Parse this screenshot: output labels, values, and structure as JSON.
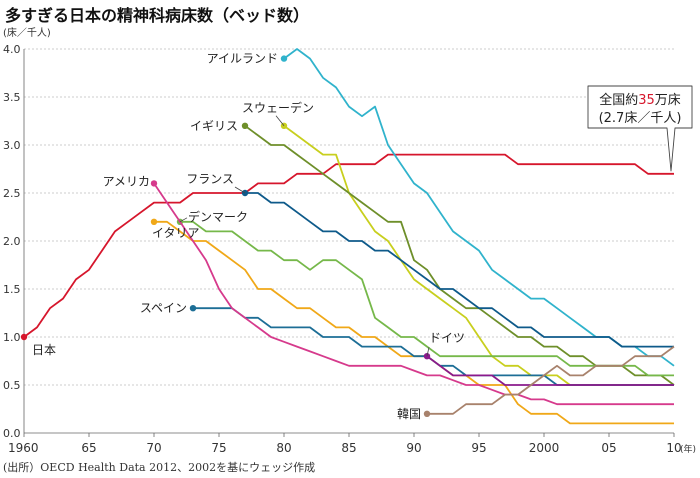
{
  "title": "多すぎる日本の精神科病床数（ベッド数）",
  "y_unit_label": "(床／千人)",
  "x_unit_label": "(年)",
  "source": "(出所）OECD Health Data 2012、2002を基にウェッジ作成",
  "callout": {
    "line1_prefix": "全国約",
    "line1_number": "35",
    "line1_suffix": "万床",
    "line2": "(2.7床／千人)",
    "number_color": "#d6162c"
  },
  "chart_data": {
    "type": "line",
    "title": "多すぎる日本の精神科病床数（ベッド数）",
    "xlabel": "",
    "ylabel": "(床／千人)",
    "xlim": [
      1960,
      2010
    ],
    "ylim": [
      0,
      4
    ],
    "x_ticks": [
      1960,
      1965,
      1970,
      1975,
      1980,
      1985,
      1990,
      1995,
      2000,
      2005,
      2010
    ],
    "x_tick_labels": [
      "1960",
      "65",
      "70",
      "75",
      "80",
      "85",
      "90",
      "95",
      "2000",
      "05",
      "10"
    ],
    "y_ticks": [
      0,
      0.5,
      1,
      1.5,
      2,
      2.5,
      3,
      3.5,
      4
    ],
    "y_tick_labels": [
      "0.0",
      "0.5",
      "1.0",
      "1.5",
      "2.0",
      "2.5",
      "3.0",
      "3.5",
      "4.0"
    ],
    "grid": "horizontal",
    "series": [
      {
        "name": "日本",
        "color": "#d6162c",
        "x": [
          1960,
          1961,
          1962,
          1963,
          1964,
          1965,
          1966,
          1967,
          1968,
          1969,
          1970,
          1971,
          1972,
          1973,
          1974,
          1975,
          1976,
          1977,
          1978,
          1979,
          1980,
          1981,
          1982,
          1983,
          1984,
          1985,
          1986,
          1987,
          1988,
          1989,
          1990,
          1991,
          1992,
          1993,
          1994,
          1995,
          1996,
          1997,
          1998,
          1999,
          2000,
          2001,
          2002,
          2003,
          2004,
          2005,
          2006,
          2007,
          2008,
          2009,
          2010
        ],
        "y": [
          1.0,
          1.1,
          1.3,
          1.4,
          1.6,
          1.7,
          1.9,
          2.1,
          2.2,
          2.3,
          2.4,
          2.4,
          2.4,
          2.5,
          2.5,
          2.5,
          2.5,
          2.5,
          2.6,
          2.6,
          2.6,
          2.7,
          2.7,
          2.7,
          2.8,
          2.8,
          2.8,
          2.8,
          2.9,
          2.9,
          2.9,
          2.9,
          2.9,
          2.9,
          2.9,
          2.9,
          2.9,
          2.9,
          2.8,
          2.8,
          2.8,
          2.8,
          2.8,
          2.8,
          2.8,
          2.8,
          2.8,
          2.8,
          2.7,
          2.7,
          2.7
        ]
      },
      {
        "name": "アイルランド",
        "color": "#30b3cc",
        "x": [
          1980,
          1981,
          1982,
          1983,
          1984,
          1985,
          1986,
          1987,
          1988,
          1989,
          1990,
          1991,
          1992,
          1993,
          1994,
          1995,
          1996,
          1997,
          1998,
          1999,
          2000,
          2001,
          2002,
          2003,
          2004,
          2005,
          2006,
          2007,
          2008,
          2009,
          2010
        ],
        "y": [
          3.9,
          4.0,
          3.9,
          3.7,
          3.6,
          3.4,
          3.3,
          3.4,
          3.0,
          2.8,
          2.6,
          2.5,
          2.3,
          2.1,
          2.0,
          1.9,
          1.7,
          1.6,
          1.5,
          1.4,
          1.4,
          1.3,
          1.2,
          1.1,
          1.0,
          1.0,
          0.9,
          0.9,
          0.8,
          0.8,
          0.7
        ]
      },
      {
        "name": "スウェーデン",
        "color": "#c8cf1e",
        "x": [
          1980,
          1981,
          1982,
          1983,
          1984,
          1985,
          1986,
          1987,
          1988,
          1989,
          1990,
          1991,
          1992,
          1993,
          1994,
          1995,
          1996,
          1997,
          1998,
          1999,
          2000,
          2001,
          2002,
          2003,
          2004,
          2005,
          2006,
          2007,
          2008,
          2009,
          2010
        ],
        "y": [
          3.2,
          3.1,
          3.0,
          2.9,
          2.9,
          2.5,
          2.3,
          2.1,
          2.0,
          1.8,
          1.6,
          1.5,
          1.4,
          1.3,
          1.2,
          1.0,
          0.8,
          0.7,
          0.7,
          0.6,
          0.6,
          0.6,
          0.5,
          0.5,
          0.5,
          0.5,
          0.5,
          0.5,
          0.5,
          0.5,
          0.5
        ]
      },
      {
        "name": "イギリス",
        "color": "#6e8f2a",
        "x": [
          1977,
          1978,
          1979,
          1980,
          1981,
          1982,
          1983,
          1984,
          1985,
          1986,
          1987,
          1988,
          1989,
          1990,
          1991,
          1992,
          1993,
          1994,
          1995,
          1996,
          1997,
          1998,
          1999,
          2000,
          2001,
          2002,
          2003,
          2004,
          2005,
          2006,
          2007,
          2008,
          2009,
          2010
        ],
        "y": [
          3.2,
          3.1,
          3.0,
          3.0,
          2.9,
          2.8,
          2.7,
          2.6,
          2.5,
          2.4,
          2.3,
          2.2,
          2.2,
          1.8,
          1.7,
          1.5,
          1.4,
          1.3,
          1.3,
          1.2,
          1.1,
          1.0,
          1.0,
          0.9,
          0.9,
          0.8,
          0.8,
          0.7,
          0.7,
          0.7,
          0.6,
          0.6,
          0.6,
          0.5
        ]
      },
      {
        "name": "フランス",
        "color": "#0e5a8a",
        "x": [
          1977,
          1978,
          1979,
          1980,
          1981,
          1982,
          1983,
          1984,
          1985,
          1986,
          1987,
          1988,
          1989,
          1990,
          1991,
          1992,
          1993,
          1994,
          1995,
          1996,
          1997,
          1998,
          1999,
          2000,
          2001,
          2002,
          2003,
          2004,
          2005,
          2006,
          2007,
          2008,
          2009,
          2010
        ],
        "y": [
          2.5,
          2.5,
          2.4,
          2.4,
          2.3,
          2.2,
          2.1,
          2.1,
          2.0,
          2.0,
          1.9,
          1.9,
          1.8,
          1.7,
          1.6,
          1.5,
          1.5,
          1.4,
          1.3,
          1.3,
          1.2,
          1.1,
          1.1,
          1.0,
          1.0,
          1.0,
          1.0,
          1.0,
          1.0,
          0.9,
          0.9,
          0.9,
          0.9,
          0.9
        ]
      },
      {
        "name": "デンマーク",
        "color": "#76b84a",
        "x": [
          1972,
          1973,
          1974,
          1975,
          1976,
          1977,
          1978,
          1979,
          1980,
          1981,
          1982,
          1983,
          1984,
          1985,
          1986,
          1987,
          1988,
          1989,
          1990,
          1991,
          1992,
          1993,
          1994,
          1995,
          1996,
          1997,
          1998,
          1999,
          2000,
          2001,
          2002,
          2003,
          2004,
          2005,
          2006,
          2007,
          2008,
          2009,
          2010
        ],
        "y": [
          2.2,
          2.2,
          2.1,
          2.1,
          2.1,
          2.0,
          1.9,
          1.9,
          1.8,
          1.8,
          1.7,
          1.8,
          1.8,
          1.7,
          1.6,
          1.2,
          1.1,
          1.0,
          1.0,
          0.9,
          0.8,
          0.8,
          0.8,
          0.8,
          0.8,
          0.8,
          0.8,
          0.8,
          0.8,
          0.8,
          0.7,
          0.7,
          0.7,
          0.7,
          0.7,
          0.7,
          0.6,
          0.6,
          0.6
        ]
      },
      {
        "name": "イタリア",
        "color": "#f0a818",
        "x": [
          1970,
          1971,
          1972,
          1973,
          1974,
          1975,
          1976,
          1977,
          1978,
          1979,
          1980,
          1981,
          1982,
          1983,
          1984,
          1985,
          1986,
          1987,
          1988,
          1989,
          1990,
          1991,
          1992,
          1993,
          1994,
          1995,
          1996,
          1997,
          1998,
          1999,
          2000,
          2001,
          2002,
          2003,
          2004,
          2005,
          2006,
          2007,
          2008,
          2009,
          2010
        ],
        "y": [
          2.2,
          2.2,
          2.1,
          2.0,
          2.0,
          1.9,
          1.8,
          1.7,
          1.5,
          1.5,
          1.4,
          1.3,
          1.3,
          1.2,
          1.1,
          1.1,
          1.0,
          1.0,
          0.9,
          0.8,
          0.8,
          0.8,
          0.7,
          0.6,
          0.6,
          0.5,
          0.5,
          0.5,
          0.3,
          0.2,
          0.2,
          0.2,
          0.1,
          0.1,
          0.1,
          0.1,
          0.1,
          0.1,
          0.1,
          0.1,
          0.1
        ]
      },
      {
        "name": "スペイン",
        "color": "#1d6e96",
        "x": [
          1973,
          1974,
          1975,
          1976,
          1977,
          1978,
          1979,
          1980,
          1981,
          1982,
          1983,
          1984,
          1985,
          1986,
          1987,
          1988,
          1989,
          1990,
          1991,
          1992,
          1993,
          1994,
          1995,
          1996,
          1997,
          1998,
          1999,
          2000,
          2001,
          2002,
          2003,
          2004,
          2005,
          2006,
          2007,
          2008,
          2009,
          2010
        ],
        "y": [
          1.3,
          1.3,
          1.3,
          1.3,
          1.2,
          1.2,
          1.1,
          1.1,
          1.1,
          1.1,
          1.0,
          1.0,
          1.0,
          0.9,
          0.9,
          0.9,
          0.9,
          0.8,
          0.8,
          0.7,
          0.7,
          0.6,
          0.6,
          0.6,
          0.6,
          0.6,
          0.6,
          0.6,
          0.5,
          0.5,
          0.5,
          0.5,
          0.5,
          0.5,
          0.5,
          0.5,
          0.5,
          0.5
        ]
      },
      {
        "name": "アメリカ",
        "color": "#d63a8c",
        "x": [
          1970,
          1971,
          1972,
          1973,
          1974,
          1975,
          1976,
          1977,
          1978,
          1979,
          1980,
          1981,
          1982,
          1983,
          1984,
          1985,
          1986,
          1987,
          1988,
          1989,
          1990,
          1991,
          1992,
          1993,
          1994,
          1995,
          1996,
          1997,
          1998,
          1999,
          2000,
          2001,
          2002,
          2003,
          2004,
          2005,
          2006,
          2007,
          2008,
          2009,
          2010
        ],
        "y": [
          2.6,
          2.4,
          2.2,
          2.0,
          1.8,
          1.5,
          1.3,
          1.2,
          1.1,
          1.0,
          0.95,
          0.9,
          0.85,
          0.8,
          0.75,
          0.7,
          0.7,
          0.7,
          0.7,
          0.7,
          0.65,
          0.6,
          0.6,
          0.55,
          0.5,
          0.5,
          0.45,
          0.4,
          0.4,
          0.35,
          0.35,
          0.3,
          0.3,
          0.3,
          0.3,
          0.3,
          0.3,
          0.3,
          0.3,
          0.3,
          0.3
        ]
      },
      {
        "name": "ドイツ",
        "color": "#8b1a8c",
        "x": [
          1991,
          1992,
          1993,
          1994,
          1995,
          1996,
          1997,
          1998,
          1999,
          2000,
          2001,
          2002,
          2003,
          2004,
          2005,
          2006,
          2007,
          2008,
          2009,
          2010
        ],
        "y": [
          0.8,
          0.7,
          0.6,
          0.6,
          0.6,
          0.6,
          0.5,
          0.5,
          0.5,
          0.5,
          0.5,
          0.5,
          0.5,
          0.5,
          0.5,
          0.5,
          0.5,
          0.5,
          0.5,
          0.5
        ]
      },
      {
        "name": "韓国",
        "color": "#a8826c",
        "x": [
          1991,
          1992,
          1993,
          1994,
          1995,
          1996,
          1997,
          1998,
          1999,
          2000,
          2001,
          2002,
          2003,
          2004,
          2005,
          2006,
          2007,
          2008,
          2009,
          2010
        ],
        "y": [
          0.2,
          0.2,
          0.2,
          0.3,
          0.3,
          0.3,
          0.4,
          0.4,
          0.5,
          0.6,
          0.7,
          0.6,
          0.6,
          0.7,
          0.7,
          0.7,
          0.8,
          0.8,
          0.8,
          0.9
        ]
      }
    ]
  }
}
